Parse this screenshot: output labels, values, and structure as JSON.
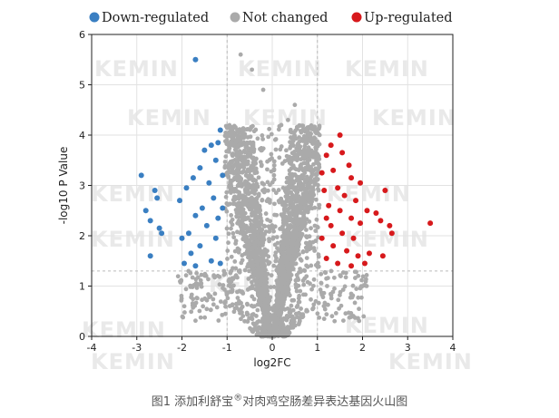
{
  "chart_data": {
    "type": "scatter",
    "xlabel": "log2FC",
    "ylabel": "-log10 P Value",
    "xlim": [
      -4,
      4
    ],
    "ylim": [
      0,
      6
    ],
    "x_ticks": [
      "-4",
      "-3",
      "-2",
      "-1",
      "0",
      "1",
      "2",
      "3",
      "4"
    ],
    "y_ticks": [
      "0",
      "1",
      "2",
      "3",
      "4",
      "5",
      "6"
    ],
    "grid": true,
    "legend_position": "top",
    "thresholds": {
      "x": [
        -1,
        1
      ],
      "y": 1.3
    },
    "series": [
      {
        "name": "Down-regulated",
        "color": "#3a7fc2",
        "points": [
          [
            -1.7,
            5.5
          ],
          [
            -2.9,
            3.2
          ],
          [
            -2.6,
            2.9
          ],
          [
            -2.55,
            2.75
          ],
          [
            -2.8,
            2.5
          ],
          [
            -2.7,
            2.3
          ],
          [
            -2.5,
            2.15
          ],
          [
            -2.45,
            2.05
          ],
          [
            -2.7,
            1.6
          ],
          [
            -1.15,
            4.1
          ],
          [
            -1.2,
            3.85
          ],
          [
            -1.35,
            3.8
          ],
          [
            -1.5,
            3.7
          ],
          [
            -1.25,
            3.5
          ],
          [
            -1.6,
            3.35
          ],
          [
            -1.75,
            3.15
          ],
          [
            -1.4,
            3.05
          ],
          [
            -1.9,
            2.95
          ],
          [
            -2.05,
            2.7
          ],
          [
            -1.3,
            2.75
          ],
          [
            -1.55,
            2.55
          ],
          [
            -1.7,
            2.4
          ],
          [
            -1.2,
            2.35
          ],
          [
            -1.45,
            2.2
          ],
          [
            -1.85,
            2.05
          ],
          [
            -2.0,
            1.95
          ],
          [
            -1.25,
            1.95
          ],
          [
            -1.6,
            1.8
          ],
          [
            -1.8,
            1.65
          ],
          [
            -1.35,
            1.5
          ],
          [
            -1.15,
            1.45
          ],
          [
            -1.7,
            1.4
          ],
          [
            -1.95,
            1.45
          ],
          [
            -1.1,
            2.55
          ],
          [
            -1.1,
            3.2
          ]
        ]
      },
      {
        "name": "Not changed",
        "color": "#aaaaaa"
      },
      {
        "name": "Up-regulated",
        "color": "#d7191c",
        "points": [
          [
            3.5,
            2.25
          ],
          [
            2.5,
            2.9
          ],
          [
            2.6,
            2.2
          ],
          [
            2.65,
            2.05
          ],
          [
            2.4,
            2.3
          ],
          [
            2.3,
            2.45
          ],
          [
            2.1,
            2.5
          ],
          [
            2.45,
            1.6
          ],
          [
            2.15,
            1.65
          ],
          [
            1.5,
            4.0
          ],
          [
            1.3,
            3.8
          ],
          [
            1.55,
            3.65
          ],
          [
            1.7,
            3.4
          ],
          [
            1.2,
            3.6
          ],
          [
            1.35,
            3.3
          ],
          [
            1.75,
            3.15
          ],
          [
            1.95,
            3.05
          ],
          [
            1.45,
            2.95
          ],
          [
            1.15,
            2.9
          ],
          [
            1.6,
            2.8
          ],
          [
            1.85,
            2.7
          ],
          [
            1.25,
            2.6
          ],
          [
            1.5,
            2.5
          ],
          [
            1.75,
            2.35
          ],
          [
            1.95,
            2.25
          ],
          [
            1.3,
            2.2
          ],
          [
            1.55,
            2.05
          ],
          [
            1.8,
            1.95
          ],
          [
            1.1,
            1.95
          ],
          [
            1.35,
            1.8
          ],
          [
            1.65,
            1.7
          ],
          [
            1.9,
            1.6
          ],
          [
            1.2,
            1.55
          ],
          [
            1.45,
            1.45
          ],
          [
            1.75,
            1.4
          ],
          [
            2.05,
            1.45
          ],
          [
            1.1,
            3.25
          ],
          [
            1.2,
            2.35
          ]
        ]
      }
    ]
  },
  "watermark_text": "KEMIN",
  "caption": {
    "prefix": "图1 添加利舒宝",
    "mark": "®",
    "suffix": "对肉鸡空肠差异表达基因火山图"
  }
}
